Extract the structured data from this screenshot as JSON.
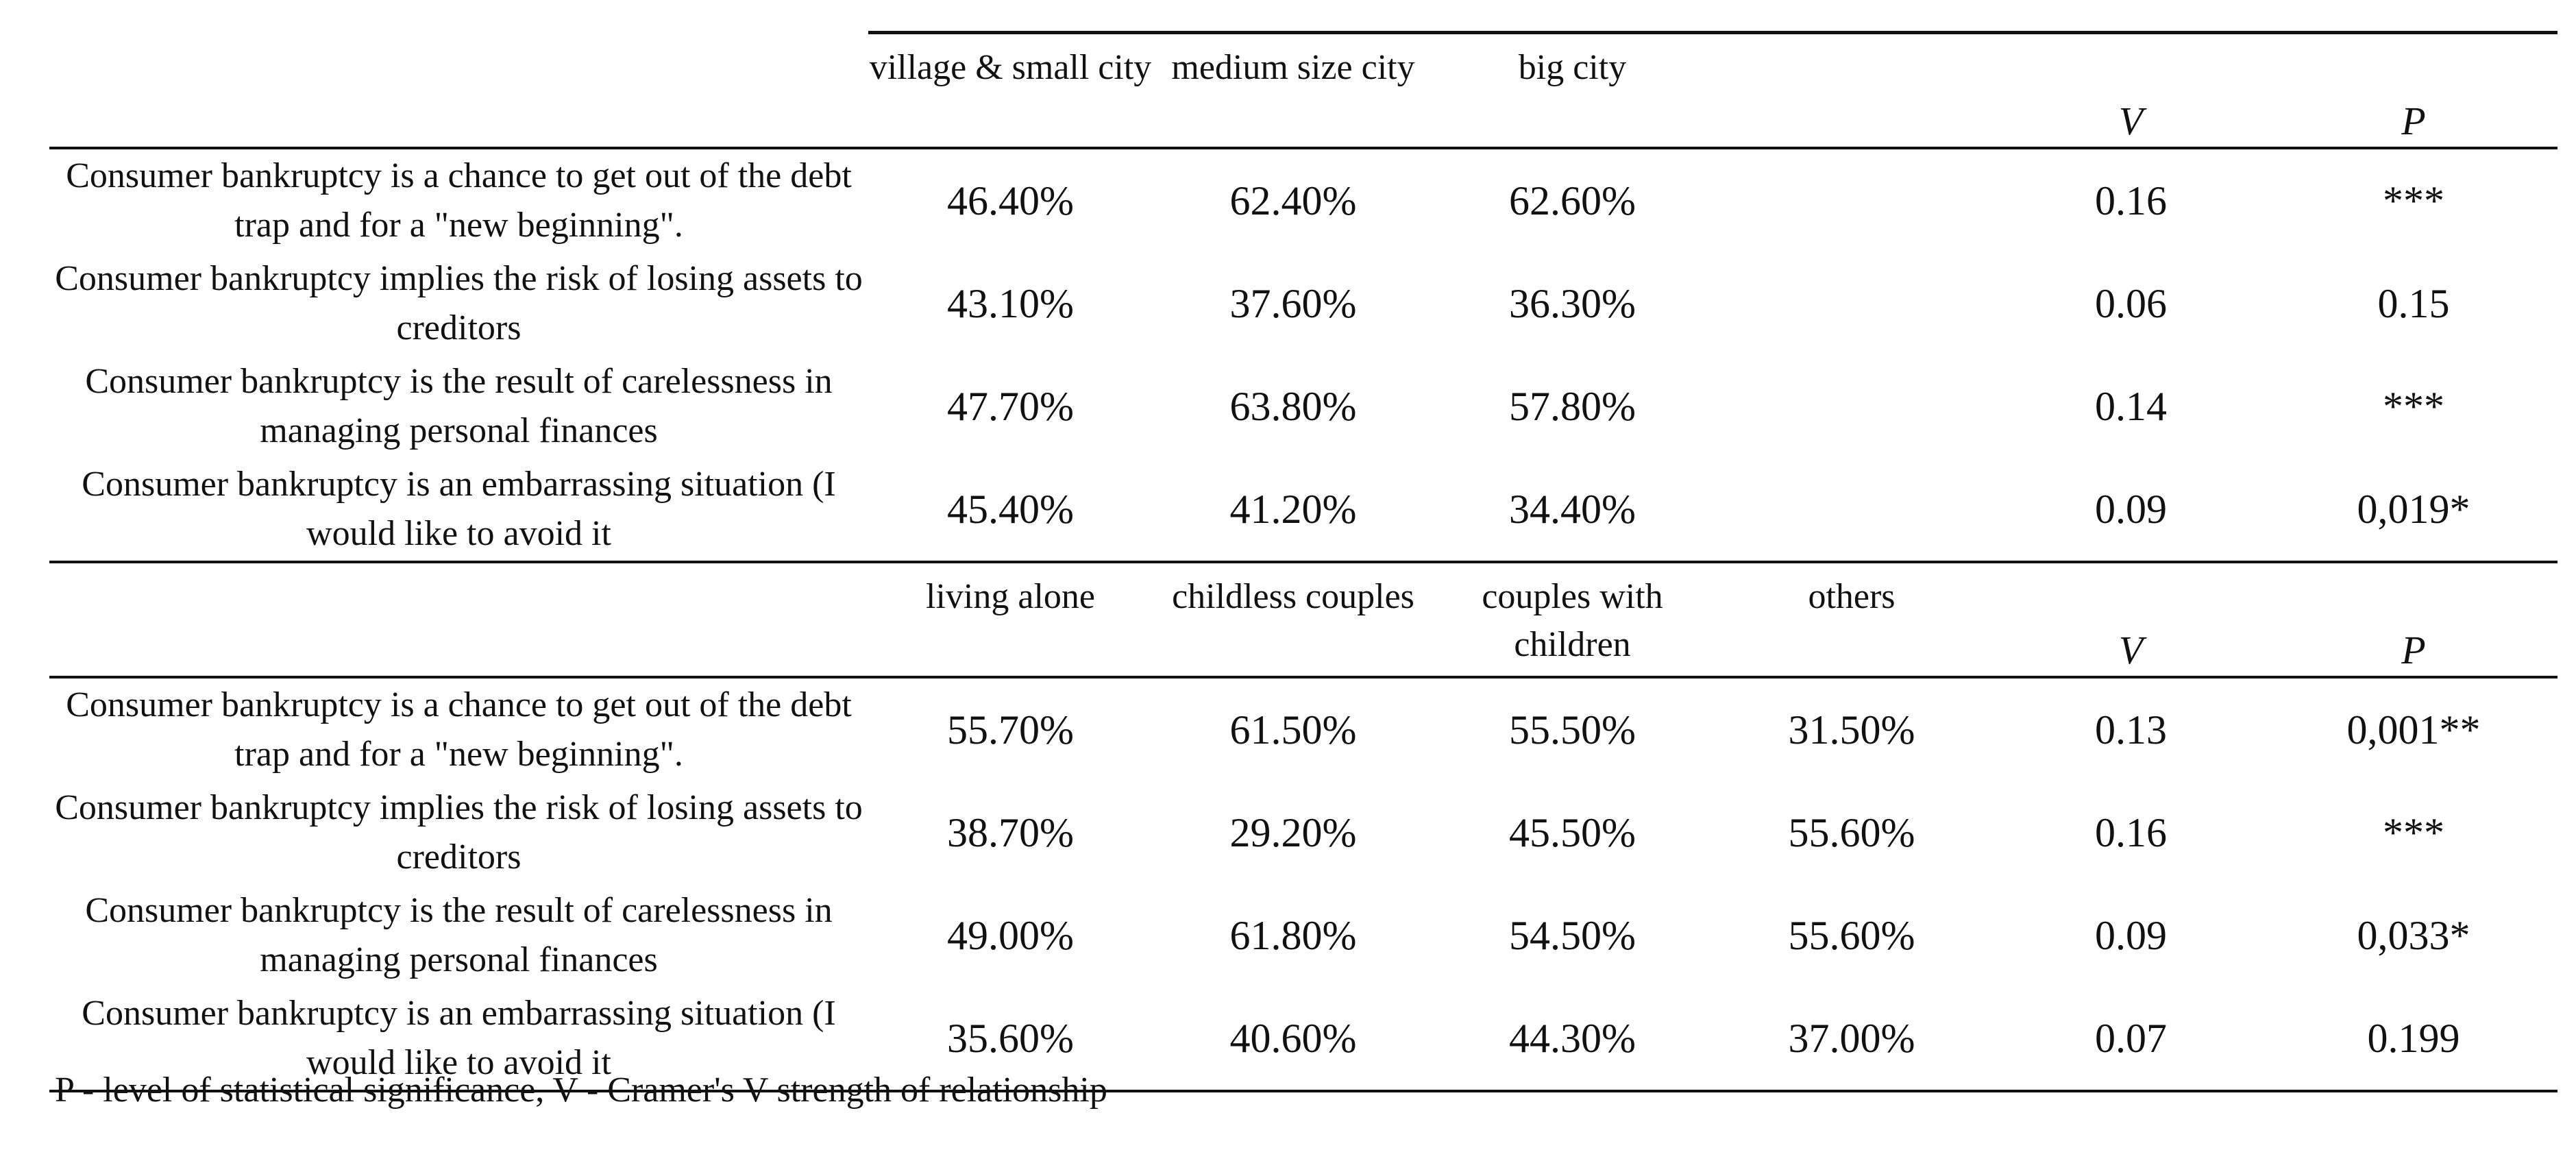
{
  "table": {
    "stat_headers": {
      "v": "V",
      "p": "P"
    },
    "blocks": [
      {
        "groups": [
          "village & small city",
          "medium size city",
          "big city",
          ""
        ],
        "rows": [
          {
            "statement": "Consumer bankruptcy is a chance to get out of the debt trap and for a \"new beginning\".",
            "values": [
              "46.40%",
              "62.40%",
              "62.60%",
              ""
            ],
            "v": "0.16",
            "p": "***"
          },
          {
            "statement": "Consumer bankruptcy implies the risk of losing assets to creditors",
            "values": [
              "43.10%",
              "37.60%",
              "36.30%",
              ""
            ],
            "v": "0.06",
            "p": "0.15"
          },
          {
            "statement": "Consumer bankruptcy is the result of carelessness in managing personal finances",
            "values": [
              "47.70%",
              "63.80%",
              "57.80%",
              ""
            ],
            "v": "0.14",
            "p": "***"
          },
          {
            "statement": "Consumer bankruptcy is an embarrassing situation (I would like to avoid it",
            "values": [
              "45.40%",
              "41.20%",
              "34.40%",
              ""
            ],
            "v": "0.09",
            "p": "0,019*"
          }
        ]
      },
      {
        "groups": [
          "living alone",
          "childless couples",
          "couples with children",
          "others"
        ],
        "rows": [
          {
            "statement": "Consumer bankruptcy is a chance to get out of the debt trap and for a \"new beginning\".",
            "values": [
              "55.70%",
              "61.50%",
              "55.50%",
              "31.50%"
            ],
            "v": "0.13",
            "p": "0,001**"
          },
          {
            "statement": "Consumer bankruptcy implies the risk of losing assets to creditors",
            "values": [
              "38.70%",
              "29.20%",
              "45.50%",
              "55.60%"
            ],
            "v": "0.16",
            "p": "***"
          },
          {
            "statement": "Consumer bankruptcy is the result of carelessness in managing personal finances",
            "values": [
              "49.00%",
              "61.80%",
              "54.50%",
              "55.60%"
            ],
            "v": "0.09",
            "p": "0,033*"
          },
          {
            "statement": "Consumer bankruptcy is an embarrassing situation (I would like to avoid it",
            "values": [
              "35.60%",
              "40.60%",
              "44.30%",
              "37.00%"
            ],
            "v": "0.07",
            "p": "0.199"
          }
        ]
      }
    ]
  },
  "footnote": "P - level of statistical significance, V - Cramer's V strength of relationship"
}
